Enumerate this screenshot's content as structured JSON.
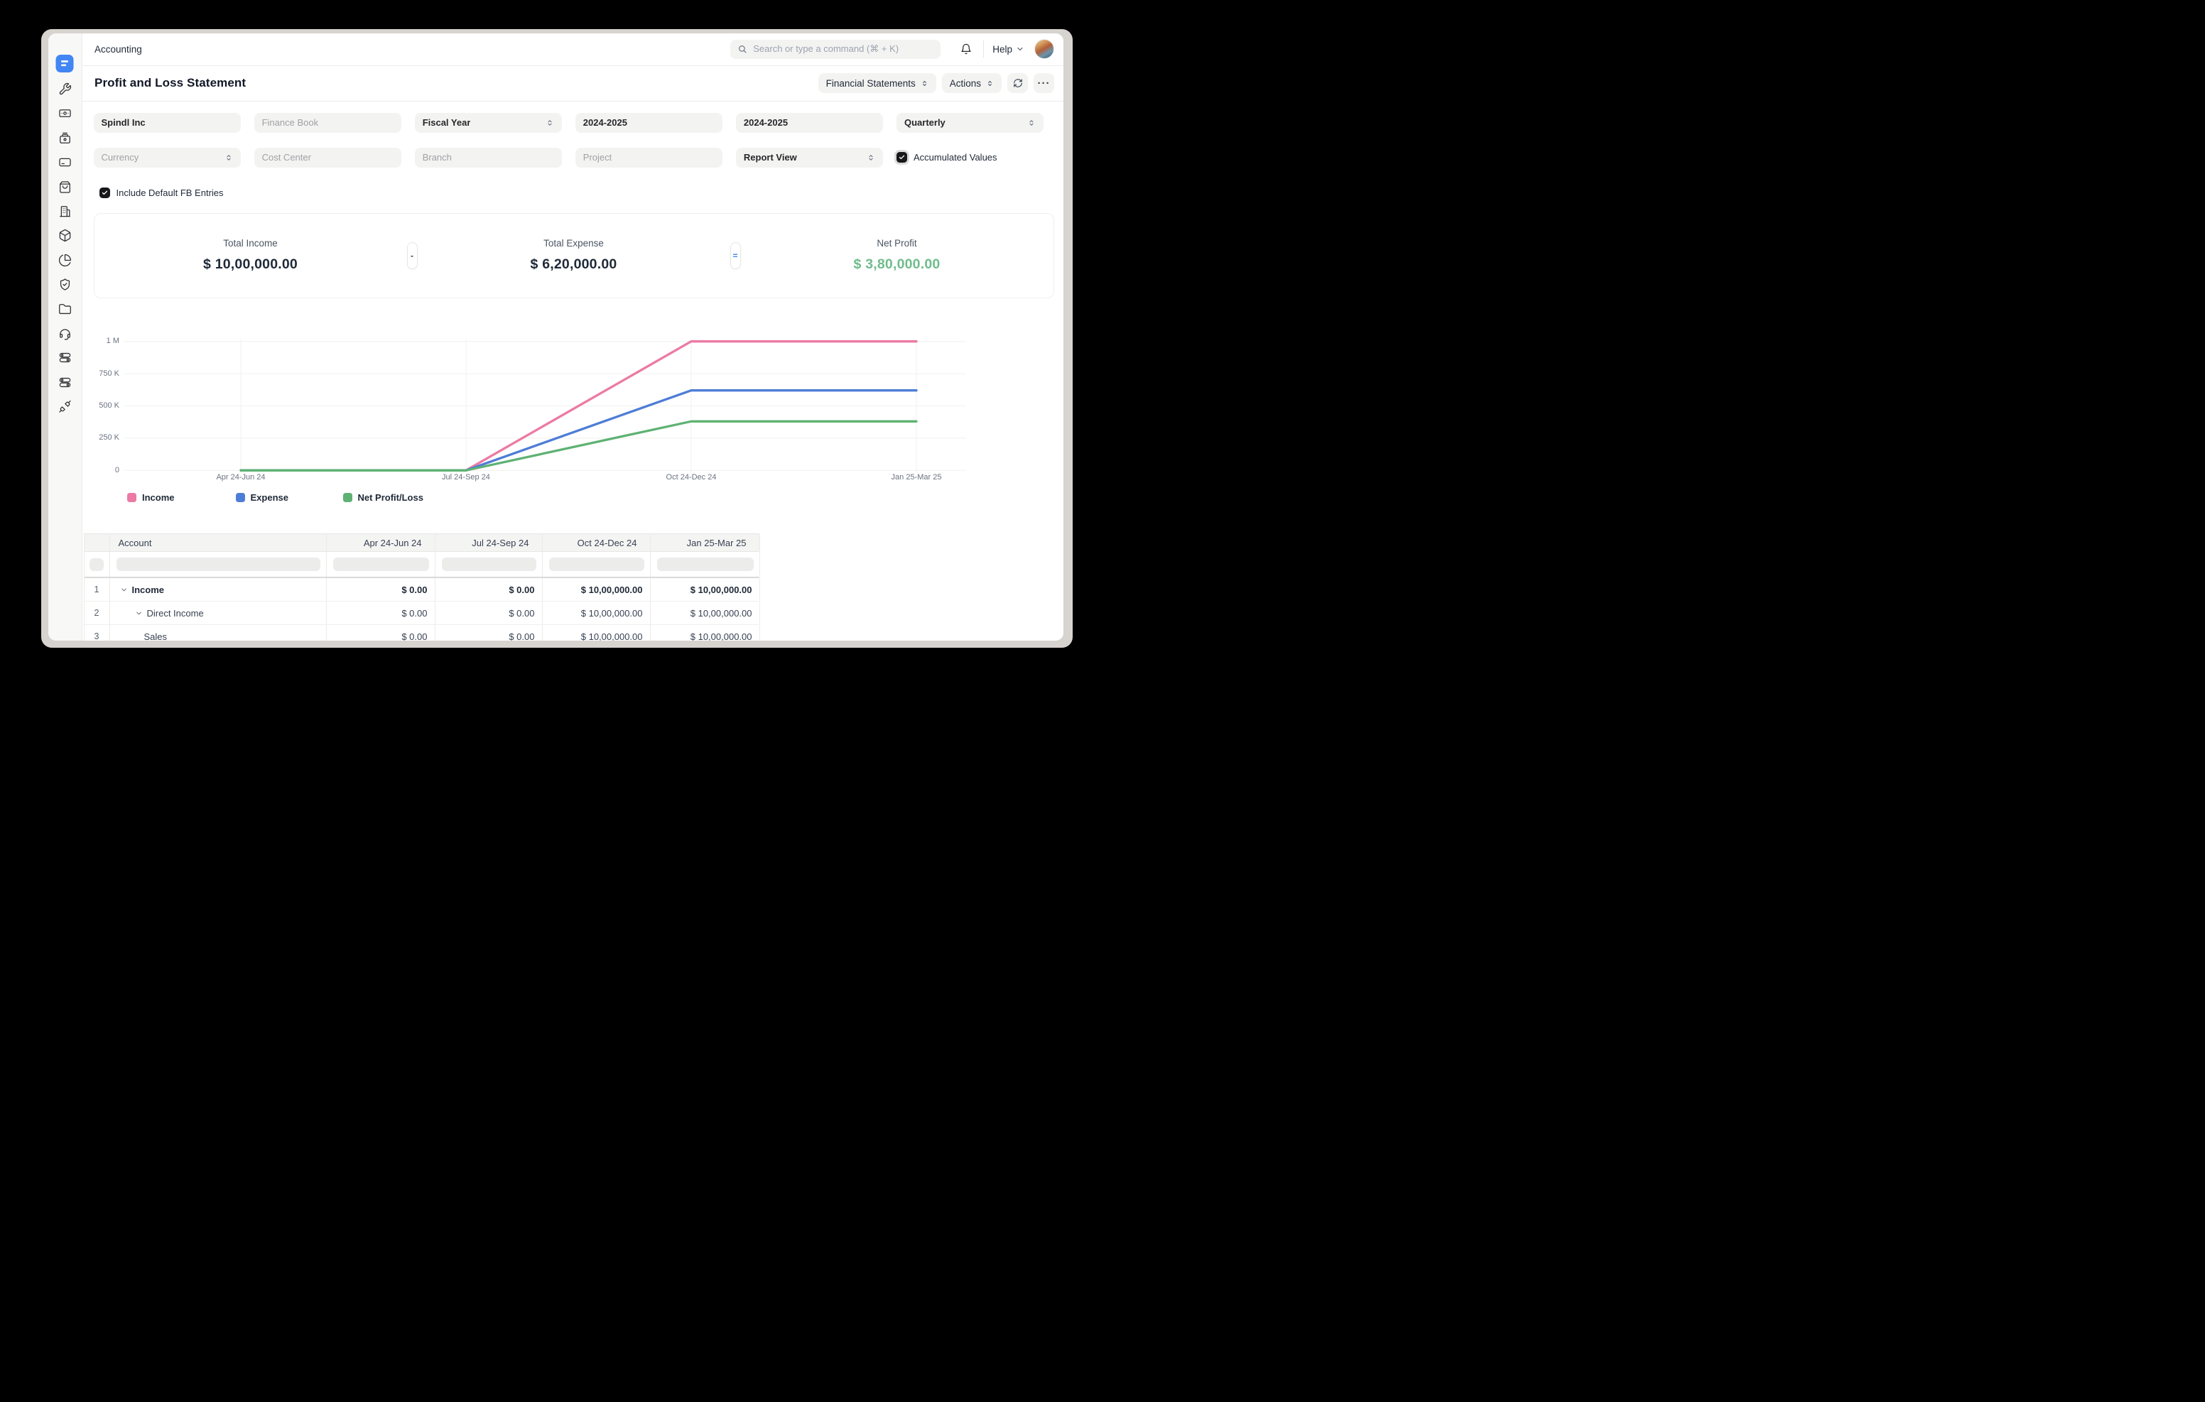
{
  "colors": {
    "logo_blue": "#4285f4",
    "income_pink": "#ec7aa4",
    "expense_blue": "#4d7dd6",
    "netprofit_green": "#5eb273",
    "net_profit_text": "#6fbd8c",
    "equals_blue": "#3b82f6"
  },
  "sidebar": {
    "logo": "erpnext-logo",
    "icons": [
      "tools",
      "payments",
      "cash-register",
      "credit-card",
      "shopping-bag",
      "building",
      "package",
      "pie-chart",
      "shield-check",
      "folder",
      "headset",
      "toggles",
      "toggles-alt",
      "plug"
    ]
  },
  "topbar": {
    "app_title": "Accounting",
    "search_placeholder": "Search or type a command (⌘ + K)",
    "help_label": "Help"
  },
  "page": {
    "title": "Profit and Loss Statement",
    "toolbar": {
      "report_group_label": "Financial Statements",
      "actions_label": "Actions",
      "ellipsis_label": "···"
    },
    "filters": {
      "row1": [
        {
          "kind": "value",
          "text": "Spindl Inc",
          "name": "company-filter"
        },
        {
          "kind": "placeholder",
          "text": "Finance Book",
          "name": "finance-book-filter"
        },
        {
          "kind": "select-value",
          "text": "Fiscal Year",
          "name": "period-basis-select"
        },
        {
          "kind": "value",
          "text": "2024-2025",
          "name": "from-fiscal-year-filter"
        },
        {
          "kind": "value",
          "text": "2024-2025",
          "name": "to-fiscal-year-filter"
        },
        {
          "kind": "select-value",
          "text": "Quarterly",
          "name": "periodicity-select"
        }
      ],
      "row2": [
        {
          "kind": "select-placeholder",
          "text": "Currency",
          "name": "currency-select"
        },
        {
          "kind": "placeholder",
          "text": "Cost Center",
          "name": "cost-center-filter"
        },
        {
          "kind": "placeholder",
          "text": "Branch",
          "name": "branch-filter"
        },
        {
          "kind": "placeholder",
          "text": "Project",
          "name": "project-filter"
        },
        {
          "kind": "select-value",
          "text": "Report View",
          "name": "report-view-select"
        },
        {
          "kind": "checkbox",
          "checked": true,
          "text": "Accumulated Values",
          "name": "accumulated-values-checkbox"
        }
      ],
      "include_default_fb": {
        "checked": true,
        "label": "Include Default FB Entries"
      }
    },
    "summary": {
      "items": [
        {
          "label": "Total Income",
          "value": "$ 10,00,000.00",
          "color": "#1f2937"
        },
        {
          "label": "Total Expense",
          "value": "$ 6,20,000.00",
          "color": "#1f2937"
        },
        {
          "label": "Net Profit",
          "value": "$ 3,80,000.00",
          "color": "#6fbd8c"
        }
      ],
      "operators": [
        "-",
        "="
      ]
    },
    "chart_data": {
      "type": "line",
      "x": [
        "Apr 24-Jun 24",
        "Jul 24-Sep 24",
        "Oct 24-Dec 24",
        "Jan 25-Mar 25"
      ],
      "series": [
        {
          "name": "Income",
          "color": "#ec7aa4",
          "values": [
            0,
            0,
            1000000,
            1000000
          ]
        },
        {
          "name": "Expense",
          "color": "#4d7dd6",
          "values": [
            0,
            0,
            620000,
            620000
          ]
        },
        {
          "name": "Net Profit/Loss",
          "color": "#5eb273",
          "values": [
            0,
            0,
            380000,
            380000
          ]
        }
      ],
      "ylim": [
        0,
        1000000
      ],
      "ytick_labels": [
        "0",
        "250 K",
        "500 K",
        "750 K",
        "1 M"
      ],
      "grid": true,
      "legend_position": "bottom"
    },
    "table": {
      "columns": [
        "Account",
        "Apr 24-Jun 24",
        "Jul 24-Sep 24",
        "Oct 24-Dec 24",
        "Jan 25-Mar 25"
      ],
      "rows": [
        {
          "num": "1",
          "account": "Income",
          "indent": 0,
          "expandable": true,
          "bold": true,
          "values": [
            "$ 0.00",
            "$ 0.00",
            "$ 10,00,000.00",
            "$ 10,00,000.00"
          ]
        },
        {
          "num": "2",
          "account": "Direct Income",
          "indent": 1,
          "expandable": true,
          "bold": false,
          "values": [
            "$ 0.00",
            "$ 0.00",
            "$ 10,00,000.00",
            "$ 10,00,000.00"
          ]
        },
        {
          "num": "3",
          "account": "Sales",
          "indent": 2,
          "expandable": false,
          "bold": false,
          "values": [
            "$ 0.00",
            "$ 0.00",
            "$ 10,00,000.00",
            "$ 10,00,000.00"
          ]
        }
      ]
    }
  }
}
